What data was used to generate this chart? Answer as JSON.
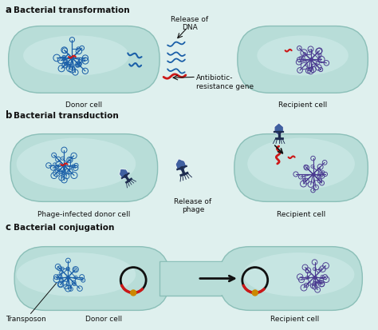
{
  "bg_color": "#dff0ee",
  "cell_fill_center": "#b8ddd8",
  "cell_fill_light": "#cceae6",
  "cell_edge": "#8bbfb8",
  "blue_dna": "#1a5fa8",
  "purple_dna": "#4a3a90",
  "red_gene": "#cc1818",
  "phage_color": "#1e2d50",
  "plasmid_black": "#111111",
  "plasmid_red": "#cc1818",
  "plasmid_gold": "#cc8800",
  "arrow_color": "#111111",
  "text_color": "#111111",
  "section_labels": [
    "a",
    "b",
    "c"
  ],
  "section_titles": [
    "Bacterial transformation",
    "Bacterial transduction",
    "Bacterial conjugation"
  ],
  "donor_label": "Donor cell",
  "recipient_label": "Recipient cell",
  "phage_donor_label": "Phage-infected donor cell",
  "transposon_label": "Transposon",
  "release_dna_label": "Release of\nDNA",
  "antibiotic_label": "Antibiotic-\nresistance gene",
  "release_phage_label": "Release of\nphage",
  "label_fontsize": 6.5,
  "section_fontsize": 7.5
}
